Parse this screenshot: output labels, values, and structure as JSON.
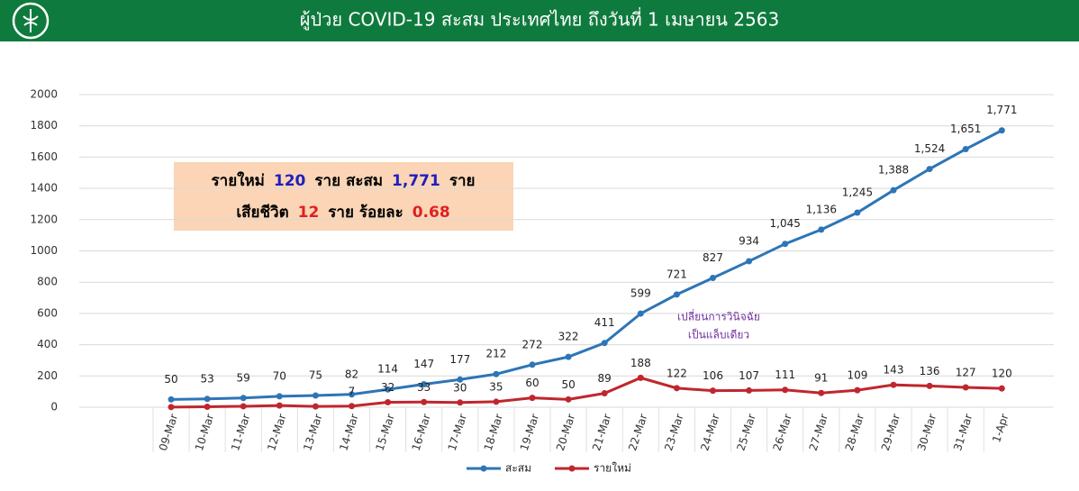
{
  "chart_data": {
    "type": "line",
    "title": "ผู้ป่วย COVID-19 สะสม  ประเทศไทย ถึงวันที่ 1 เมษายน 2563",
    "categories": [
      "09-Mar",
      "10-Mar",
      "11-Mar",
      "12-Mar",
      "13-Mar",
      "14-Mar",
      "15-Mar",
      "16-Mar",
      "17-Mar",
      "18-Mar",
      "19-Mar",
      "20-Mar",
      "21-Mar",
      "22-Mar",
      "23-Mar",
      "24-Mar",
      "25-Mar",
      "26-Mar",
      "27-Mar",
      "28-Mar",
      "29-Mar",
      "30-Mar",
      "31-Mar",
      "1-Apr"
    ],
    "series": [
      {
        "name": "สะสม",
        "color": "#2e75b6",
        "values": [
          50,
          53,
          59,
          70,
          75,
          82,
          114,
          147,
          177,
          212,
          272,
          322,
          411,
          599,
          721,
          827,
          934,
          1045,
          1136,
          1245,
          1388,
          1524,
          1651,
          1771
        ],
        "value_labels": [
          "50",
          "53",
          "59",
          "70",
          "75",
          "82",
          "114",
          "147",
          "177",
          "212",
          "272",
          "322",
          "411",
          "599",
          "721",
          "827",
          "934",
          "1,045",
          "1,136",
          "1,245",
          "1,388",
          "1,524",
          "1,651",
          "1,771"
        ]
      },
      {
        "name": "รายใหม่",
        "color": "#c0262d",
        "values": [
          1,
          3,
          6,
          11,
          5,
          7,
          32,
          33,
          30,
          35,
          60,
          50,
          89,
          188,
          122,
          106,
          107,
          111,
          91,
          109,
          143,
          136,
          127,
          120
        ],
        "value_labels": [
          null,
          null,
          null,
          null,
          null,
          "7",
          "32",
          "33",
          "30",
          "35",
          "60",
          "50",
          "89",
          "188",
          "122",
          "106",
          "107",
          "111",
          "91",
          "109",
          "143",
          "136",
          "127",
          "120"
        ]
      }
    ],
    "ylim": [
      0,
      2000
    ],
    "yticks": [
      0,
      200,
      400,
      600,
      800,
      1000,
      1200,
      1400,
      1600,
      1800,
      2000
    ],
    "grid": true,
    "legend": "bottom",
    "info_box": [
      [
        {
          "text": "รายใหม่",
          "color": "#000000"
        },
        {
          "text": "120",
          "color": "#1f1fbf"
        },
        {
          "text": "ราย สะสม",
          "color": "#000000"
        },
        {
          "text": "1,771",
          "color": "#1f1fbf"
        },
        {
          "text": "ราย",
          "color": "#000000"
        }
      ],
      [
        {
          "text": "เสียชีวิต",
          "color": "#000000"
        },
        {
          "text": "12",
          "color": "#e02020"
        },
        {
          "text": "ราย ร้อยละ",
          "color": "#000000"
        },
        {
          "text": "0.68",
          "color": "#e02020"
        }
      ]
    ],
    "annotation": [
      "เปลี่ยนการวินิจฉัย",
      "เป็นแล็บเดียว"
    ]
  }
}
